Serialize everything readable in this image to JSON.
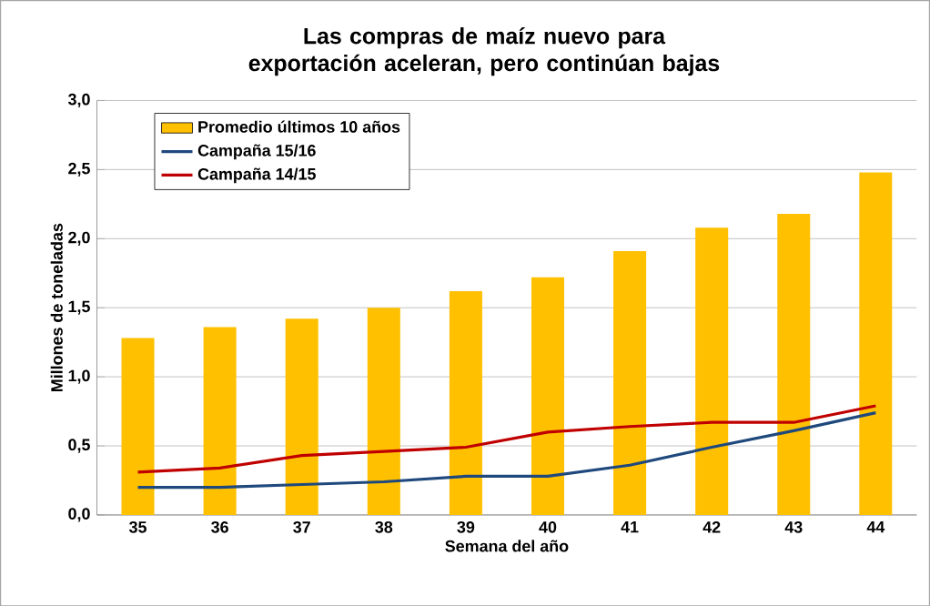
{
  "chart_data": {
    "type": "bar",
    "title": "Las compras de maíz nuevo para exportación aceleran, pero continúan bajas",
    "xlabel": "Semana del año",
    "ylabel": "Millones de toneladas",
    "categories": [
      "35",
      "36",
      "37",
      "38",
      "39",
      "40",
      "41",
      "42",
      "43",
      "44"
    ],
    "series": [
      {
        "name": "Promedio últimos 10 años",
        "color": "#ffc000",
        "values": [
          1.28,
          1.36,
          1.42,
          1.5,
          1.62,
          1.72,
          1.91,
          2.08,
          2.18,
          2.48
        ]
      },
      {
        "name": "Campaña 15/16",
        "type": "line",
        "color": "#1f497d",
        "values": [
          0.2,
          0.2,
          0.22,
          0.24,
          0.28,
          0.28,
          0.36,
          0.49,
          0.61,
          0.74
        ]
      },
      {
        "name": "Campaña 14/15",
        "type": "line",
        "color": "#c00000",
        "values": [
          0.31,
          0.34,
          0.43,
          0.46,
          0.49,
          0.6,
          0.64,
          0.67,
          0.67,
          0.79
        ]
      }
    ],
    "ylim": [
      0,
      3
    ],
    "yticks": [
      {
        "value": 0,
        "label": "0,0"
      },
      {
        "value": 0.5,
        "label": "0,5"
      },
      {
        "value": 1,
        "label": "1,0"
      },
      {
        "value": 1.5,
        "label": "1,5"
      },
      {
        "value": 2,
        "label": "2,0"
      },
      {
        "value": 2.5,
        "label": "2,5"
      },
      {
        "value": 3,
        "label": "3,0"
      }
    ],
    "grid": "y",
    "legend": "top left",
    "marker": "none",
    "line_style": "solid"
  }
}
